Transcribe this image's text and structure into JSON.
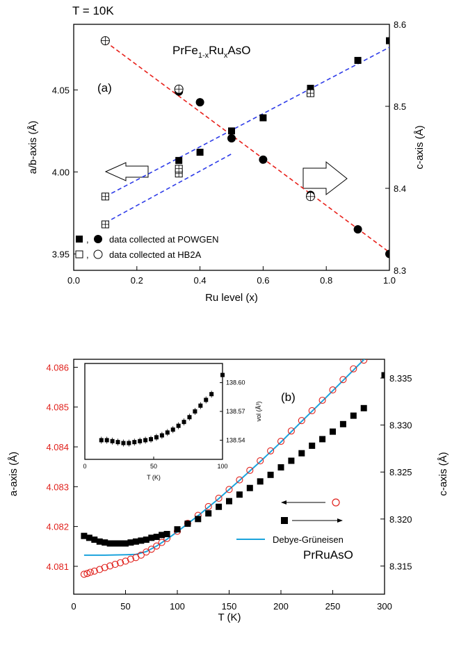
{
  "chart_data": [
    {
      "panel": "(a)",
      "type": "scatter",
      "header": "T = 10K",
      "title_main": "PrFe",
      "title_sub1": "1-x",
      "title_mid": "Ru",
      "title_sub2": "x",
      "title_end": "AsO",
      "xlabel": "Ru level (x)",
      "ylabel_left": "a/b-axis (Å)",
      "ylabel_right": "c-axis (Å)",
      "xlim": [
        0.0,
        1.0
      ],
      "ylim_left": [
        3.94,
        4.09
      ],
      "ylim_right": [
        8.3,
        8.6
      ],
      "xticks": [
        "0.0",
        "0.2",
        "0.4",
        "0.6",
        "0.8",
        "1.0"
      ],
      "yticks_left": [
        "3.95",
        "4.00",
        "4.05"
      ],
      "yticks_right": [
        "8.3",
        "8.4",
        "8.5",
        "8.6"
      ],
      "legend": {
        "sep": ",",
        "powgen": "data collected at POWGEN",
        "hb2a": "data collected at HB2A",
        "placement": "bottom-left"
      },
      "a_powgen": [
        [
          0.333,
          4.007
        ],
        [
          0.4,
          4.012
        ],
        [
          0.5,
          4.025
        ],
        [
          0.6,
          4.033
        ],
        [
          0.75,
          4.051
        ],
        [
          0.9,
          4.068
        ],
        [
          1.0,
          4.08
        ]
      ],
      "a_hb2a": [
        [
          0.1,
          3.968
        ],
        [
          0.1,
          3.985
        ],
        [
          0.333,
          3.999
        ],
        [
          0.333,
          4.002
        ],
        [
          0.75,
          4.048
        ]
      ],
      "c_powgen": [
        [
          0.333,
          8.518
        ],
        [
          0.4,
          8.505
        ],
        [
          0.5,
          8.461
        ],
        [
          0.6,
          8.435
        ],
        [
          0.75,
          8.392
        ],
        [
          0.9,
          8.35
        ],
        [
          1.0,
          8.32
        ]
      ],
      "c_hb2a": [
        [
          0.1,
          8.58
        ],
        [
          0.333,
          8.521
        ],
        [
          0.75,
          8.39
        ]
      ],
      "fits": [
        {
          "color": "#e8201a",
          "axis": "right",
          "points": [
            [
              0.1,
              8.579
            ],
            [
              1.0,
              8.322
            ]
          ]
        },
        {
          "color": "#2d3be8",
          "axis": "left",
          "points": [
            [
              0.1,
              3.969
            ],
            [
              0.5,
              4.011
            ]
          ]
        },
        {
          "color": "#2d3be8",
          "axis": "left",
          "points": [
            [
              0.1,
              3.985
            ],
            [
              1.0,
              4.076
            ]
          ]
        }
      ]
    },
    {
      "panel": "(b)",
      "type": "scatter",
      "title": "PrRuAsO",
      "xlabel": "T (K)",
      "ylabel_left": "a-axis (Å)",
      "ylabel_right": "c-axis (Å)",
      "xlim": [
        0,
        300
      ],
      "ylim_left": [
        4.0803,
        4.0862
      ],
      "ylim_right": [
        8.312,
        8.337
      ],
      "xticks": [
        "0",
        "50",
        "100",
        "150",
        "200",
        "250",
        "300"
      ],
      "yticks_left": [
        "4.081",
        "4.082",
        "4.083",
        "4.084",
        "4.085",
        "4.086"
      ],
      "yticks_right": [
        "8.315",
        "8.320",
        "8.325",
        "8.330",
        "8.335"
      ],
      "colors": {
        "a_axis": "#e0201b",
        "c_axis": "#000000",
        "fit": "#1ba3dc"
      },
      "legend_fit": "Debye-Grüneisen",
      "a_axis_points": [
        [
          10,
          4.0808
        ],
        [
          13,
          4.08082
        ],
        [
          16,
          4.08085
        ],
        [
          20,
          4.08088
        ],
        [
          25,
          4.08092
        ],
        [
          30,
          4.08097
        ],
        [
          35,
          4.08101
        ],
        [
          40,
          4.08105
        ],
        [
          45,
          4.08109
        ],
        [
          50,
          4.08113
        ],
        [
          55,
          4.08118
        ],
        [
          60,
          4.08122
        ],
        [
          65,
          4.08128
        ],
        [
          70,
          4.08136
        ],
        [
          75,
          4.08143
        ],
        [
          80,
          4.08151
        ],
        [
          85,
          4.0816
        ],
        [
          90,
          4.0817
        ],
        [
          100,
          4.08188
        ],
        [
          110,
          4.08208
        ],
        [
          120,
          4.08228
        ],
        [
          130,
          4.0825
        ],
        [
          140,
          4.08271
        ],
        [
          150,
          4.08293
        ],
        [
          160,
          4.08317
        ],
        [
          170,
          4.08341
        ],
        [
          180,
          4.08365
        ],
        [
          190,
          4.0839
        ],
        [
          200,
          4.08414
        ],
        [
          210,
          4.0844
        ],
        [
          220,
          4.08466
        ],
        [
          230,
          4.08491
        ],
        [
          240,
          4.08517
        ],
        [
          250,
          4.08543
        ],
        [
          260,
          4.08569
        ],
        [
          270,
          4.08596
        ],
        [
          280,
          4.08618
        ]
      ],
      "c_axis_points": [
        [
          10,
          8.3182
        ],
        [
          15,
          8.318
        ],
        [
          20,
          8.3178
        ],
        [
          25,
          8.3176
        ],
        [
          30,
          8.3175
        ],
        [
          35,
          8.3174
        ],
        [
          40,
          8.3174
        ],
        [
          45,
          8.3174
        ],
        [
          50,
          8.3174
        ],
        [
          55,
          8.3175
        ],
        [
          60,
          8.3176
        ],
        [
          65,
          8.3177
        ],
        [
          70,
          8.3178
        ],
        [
          75,
          8.318
        ],
        [
          80,
          8.3181
        ],
        [
          85,
          8.3183
        ],
        [
          90,
          8.3184
        ],
        [
          100,
          8.3189
        ],
        [
          110,
          8.3195
        ],
        [
          120,
          8.32
        ],
        [
          130,
          8.3206
        ],
        [
          140,
          8.3213
        ],
        [
          150,
          8.3219
        ],
        [
          160,
          8.3226
        ],
        [
          170,
          8.3233
        ],
        [
          180,
          8.324
        ],
        [
          190,
          8.3247
        ],
        [
          200,
          8.3255
        ],
        [
          210,
          8.3262
        ],
        [
          220,
          8.327
        ],
        [
          230,
          8.3278
        ],
        [
          240,
          8.3285
        ],
        [
          250,
          8.3293
        ],
        [
          260,
          8.3301
        ],
        [
          270,
          8.331
        ],
        [
          280,
          8.3318
        ],
        [
          300,
          8.3353
        ]
      ],
      "fit_curve": [
        [
          10,
          4.08128
        ],
        [
          30,
          4.08128
        ],
        [
          50,
          4.08129
        ],
        [
          60,
          4.0813
        ],
        [
          70,
          4.08137
        ],
        [
          80,
          4.08151
        ],
        [
          90,
          4.08168
        ],
        [
          100,
          4.08187
        ],
        [
          120,
          4.08227
        ],
        [
          140,
          4.0827
        ],
        [
          160,
          4.08316
        ],
        [
          180,
          4.08363
        ],
        [
          200,
          4.08412
        ],
        [
          220,
          4.08464
        ],
        [
          240,
          4.08515
        ],
        [
          260,
          4.08567
        ],
        [
          280,
          4.08619
        ],
        [
          300,
          4.08672
        ]
      ],
      "inset": {
        "xlabel": "T (K)",
        "ylabel": "vol (Å³)",
        "xlim": [
          0,
          100
        ],
        "ylim": [
          138.52,
          138.62
        ],
        "xticks": [
          "0",
          "50",
          "100"
        ],
        "yticks": [
          "138.54",
          "138.57",
          "138.60"
        ],
        "points": [
          [
            12,
            138.54
          ],
          [
            16,
            138.54
          ],
          [
            20,
            138.539
          ],
          [
            24,
            138.538
          ],
          [
            28,
            138.537
          ],
          [
            32,
            138.537
          ],
          [
            36,
            138.538
          ],
          [
            40,
            138.539
          ],
          [
            44,
            138.54
          ],
          [
            48,
            138.541
          ],
          [
            52,
            138.543
          ],
          [
            56,
            138.545
          ],
          [
            60,
            138.548
          ],
          [
            64,
            138.551
          ],
          [
            68,
            138.555
          ],
          [
            72,
            138.559
          ],
          [
            76,
            138.564
          ],
          [
            80,
            138.57
          ],
          [
            84,
            138.576
          ],
          [
            88,
            138.582
          ],
          [
            92,
            138.588
          ],
          [
            100,
            138.608
          ]
        ]
      }
    }
  ]
}
